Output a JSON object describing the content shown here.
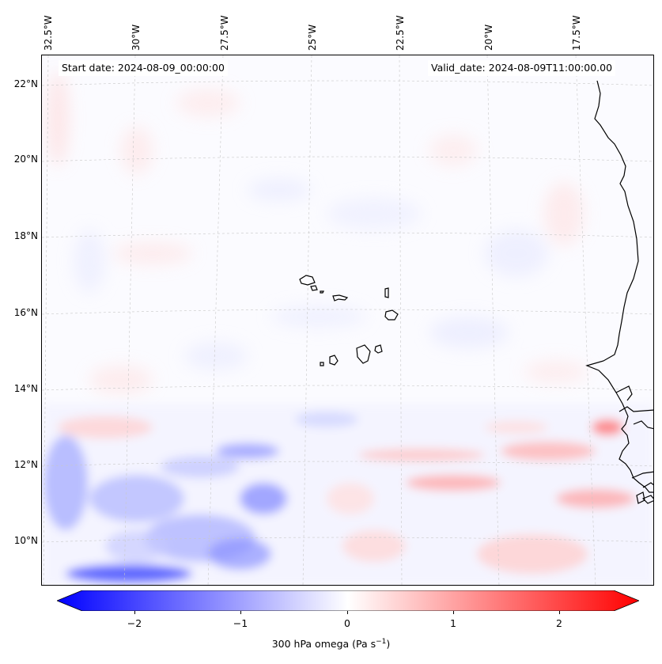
{
  "header": {
    "start_date": "Start date: 2024-08-09_00:00:00",
    "valid_date": "Valid_date: 2024-08-09T11:00:00.00"
  },
  "axes": {
    "lon_labels": [
      "32.5°W",
      "30°W",
      "27.5°W",
      "25°W",
      "22.5°W",
      "20°W",
      "17.5°W"
    ],
    "lat_labels": [
      "22°N",
      "20°N",
      "18°N",
      "16°N",
      "14°N",
      "12°N",
      "10°N"
    ]
  },
  "colorbar": {
    "ticks": [
      "−2",
      "−1",
      "0",
      "1",
      "2"
    ],
    "label_prefix": "300 hPa omega (Pa s",
    "label_sup": "−1",
    "label_suffix": ")",
    "colors": {
      "negative": "#0000ff",
      "neutral": "#ffffff",
      "positive": "#ff0000"
    }
  },
  "map": {
    "variable": "300 hPa omega",
    "features": [
      "Cape Verde islands",
      "West African coastline"
    ]
  }
}
